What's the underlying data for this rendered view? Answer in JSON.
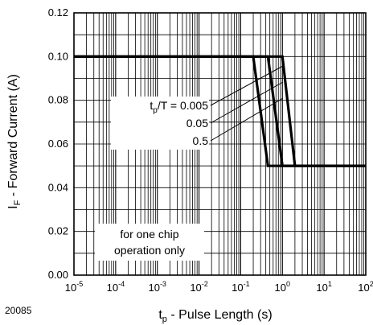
{
  "figure_id": "20085",
  "chart_data": {
    "type": "line",
    "xscale": "log",
    "xlim": [
      1e-05,
      100
    ],
    "ylim": [
      0,
      0.12
    ],
    "grid": true,
    "xlabel": {
      "main": "t",
      "sub": "p",
      "rest": " - Pulse Length (s)"
    },
    "ylabel": {
      "main": "I",
      "sub": "F",
      "rest": " - Forward Current (A)"
    },
    "x_ticks": [
      {
        "value": 1e-05,
        "base": "10",
        "exp": "-5"
      },
      {
        "value": 0.0001,
        "base": "10",
        "exp": "-4"
      },
      {
        "value": 0.001,
        "base": "10",
        "exp": "-3"
      },
      {
        "value": 0.01,
        "base": "10",
        "exp": "-2"
      },
      {
        "value": 0.1,
        "base": "10",
        "exp": "-1"
      },
      {
        "value": 1,
        "base": "10",
        "exp": "0"
      },
      {
        "value": 10,
        "base": "10",
        "exp": "1"
      },
      {
        "value": 100,
        "base": "10",
        "exp": "2"
      }
    ],
    "y_ticks": [
      {
        "value": 0.0,
        "label": "0.00"
      },
      {
        "value": 0.02,
        "label": "0.02"
      },
      {
        "value": 0.04,
        "label": "0.04"
      },
      {
        "value": 0.06,
        "label": "0.06"
      },
      {
        "value": 0.08,
        "label": "0.08"
      },
      {
        "value": 0.1,
        "label": "0.10"
      },
      {
        "value": 0.12,
        "label": "0.12"
      }
    ],
    "series": [
      {
        "name": "t_p/T = 0.005",
        "x": [
          1e-05,
          0.2,
          0.45,
          100
        ],
        "y": [
          0.1,
          0.1,
          0.05,
          0.05
        ]
      },
      {
        "name": "0.05",
        "x": [
          1e-05,
          0.45,
          1.0,
          100
        ],
        "y": [
          0.1,
          0.1,
          0.05,
          0.05
        ]
      },
      {
        "name": "0.5",
        "x": [
          1e-05,
          1.0,
          2.0,
          100
        ],
        "y": [
          0.1,
          0.1,
          0.05,
          0.05
        ]
      }
    ],
    "curve_labels": [
      {
        "main": "t",
        "sub": "p",
        "rest": "/T = 0.005"
      },
      {
        "text": "0.05"
      },
      {
        "text": "0.5"
      }
    ],
    "annotation": [
      "for one chip",
      "operation only"
    ]
  }
}
